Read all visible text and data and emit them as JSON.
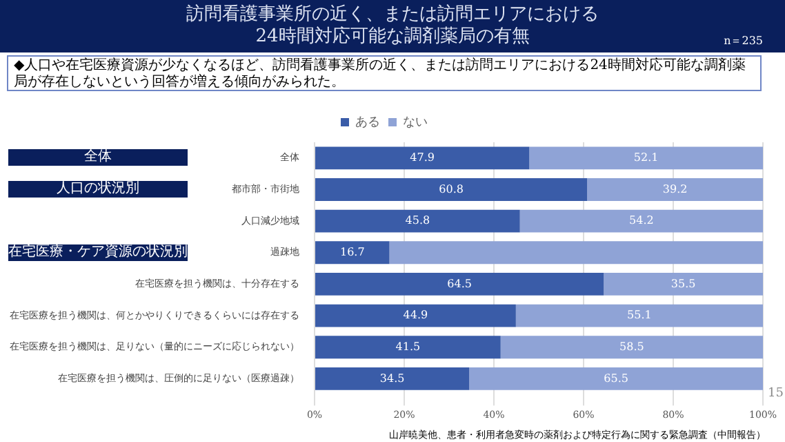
{
  "chart_data": {
    "type": "bar",
    "orientation": "horizontal",
    "stacked": true,
    "title": "訪問看護事業所の近く、または訪問エリアにおける\n24時間対応可能な調剤薬局の有無",
    "subtitle": "◆人口や在宅医療資源が少なくなるほど、訪問看護事業所の近く、または訪問エリアにおける24時間対応可能な調剤薬局が存在しないという回答が増える傾向がみられた。",
    "categories": [
      "全体",
      "都市部・市街地",
      "人口減少地域",
      "過疎地",
      "在宅医療を担う機関は、十分存在する",
      "在宅医療を担う機関は、何とかやりくりできるくらいには存在する",
      "在宅医療を担う機関は、足りない（量的にニーズに応じられない）",
      "在宅医療を担う機関は、圧倒的に足りない（医療過疎）"
    ],
    "series": [
      {
        "name": "ある",
        "color": "#3a5ca8",
        "values": [
          47.9,
          60.8,
          45.8,
          16.7,
          64.5,
          44.9,
          41.5,
          34.5
        ],
        "value_labels": [
          "47.9",
          "60.8",
          "45.8",
          "16.7",
          "64.5",
          "44.9",
          "41.5",
          "34.5"
        ]
      },
      {
        "name": "ない",
        "color": "#8fa3d6",
        "values": [
          52.1,
          39.2,
          54.2,
          83.3,
          35.5,
          55.1,
          58.5,
          65.5
        ],
        "value_labels": [
          "52.1",
          "39.2",
          "54.2",
          null,
          "35.5",
          "55.1",
          "58.5",
          "65.5"
        ]
      }
    ],
    "xlim": [
      0,
      100
    ],
    "xticks": [
      {
        "value": 0,
        "label": "0%"
      },
      {
        "value": 20,
        "label": "20%"
      },
      {
        "value": 40,
        "label": "40%"
      },
      {
        "value": 60,
        "label": "60%"
      },
      {
        "value": 80,
        "label": "80%"
      },
      {
        "value": 100,
        "label": "100%"
      }
    ],
    "grid": "x",
    "legend": "top",
    "annotations": [
      "n＝235",
      "全体",
      "人口の状況別",
      "在宅医療・ケア資源の状況別",
      "山岸暁美他、患者・利用者急変時の薬剤および特定行為に関する緊急調査（中間報告）",
      "15"
    ]
  }
}
